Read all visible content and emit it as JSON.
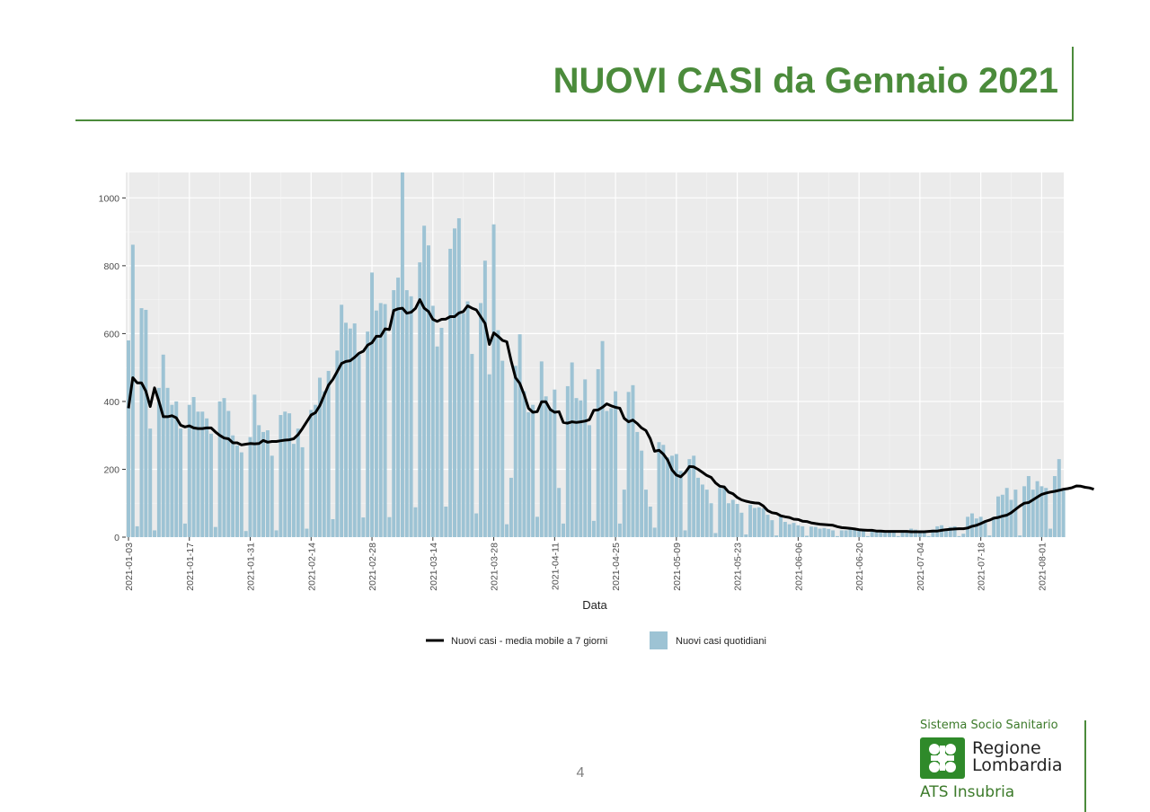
{
  "page": {
    "title": "NUOVI CASI da Gennaio 2021",
    "page_number": "4",
    "logo": {
      "top_line": "Sistema Socio Sanitario",
      "name_line1": "Regione",
      "name_line2": "Lombardia",
      "bottom_line": "ATS Insubria",
      "color": "#2f8a2a"
    }
  },
  "chart_data": {
    "type": "bar",
    "xlabel": "Data",
    "ylabel": "",
    "ylim": [
      0,
      1075
    ],
    "yticks": [
      0,
      200,
      400,
      600,
      800,
      1000
    ],
    "xticks": [
      "2021-01-03",
      "2021-01-17",
      "2021-01-31",
      "2021-02-14",
      "2021-02-28",
      "2021-03-14",
      "2021-03-28",
      "2021-04-11",
      "2021-04-25",
      "2021-05-09",
      "2021-05-23",
      "2021-06-06",
      "2021-06-20",
      "2021-07-04",
      "2021-07-18",
      "2021-08-01"
    ],
    "x_start": "2021-01-03",
    "grid": true,
    "legend_position": "bottom",
    "colors": {
      "bars": "#9dc3d4",
      "line": "#000000",
      "panel": "#ebebeb",
      "grid": "#ffffff"
    },
    "series": [
      {
        "name": "Nuovi casi - media mobile a 7 giorni",
        "kind": "line",
        "values": [
          380,
          470,
          455,
          455,
          430,
          385,
          440,
          400,
          355,
          355,
          358,
          352,
          330,
          325,
          328,
          322,
          320,
          320,
          322,
          322,
          310,
          300,
          292,
          290,
          278,
          278,
          272,
          274,
          276,
          275,
          276,
          285,
          280,
          282,
          282,
          284,
          286,
          287,
          290,
          302,
          320,
          340,
          360,
          367,
          388,
          418,
          448,
          465,
          488,
          512,
          518,
          520,
          530,
          542,
          548,
          566,
          573,
          592,
          592,
          614,
          612,
          668,
          673,
          675,
          660,
          663,
          674,
          700,
          675,
          665,
          642,
          636,
          642,
          643,
          650,
          650,
          661,
          665,
          682,
          675,
          670,
          650,
          630,
          568,
          602,
          592,
          580,
          576,
          520,
          470,
          453,
          420,
          380,
          368,
          370,
          399,
          399,
          376,
          368,
          370,
          338,
          336,
          340,
          338,
          340,
          342,
          346,
          374,
          375,
          383,
          393,
          387,
          383,
          380,
          350,
          340,
          345,
          335,
          322,
          314,
          290,
          253,
          256,
          245,
          227,
          198,
          183,
          178,
          190,
          208,
          207,
          200,
          191,
          182,
          176,
          160,
          150,
          148,
          133,
          128,
          117,
          110,
          106,
          103,
          101,
          100,
          92,
          78,
          72,
          70,
          63,
          60,
          58,
          53,
          52,
          47,
          46,
          42,
          40,
          38,
          37,
          36,
          35,
          31,
          28,
          27,
          26,
          24,
          22,
          21,
          20,
          20,
          18,
          18,
          17,
          17,
          17,
          17,
          17,
          17,
          16,
          16,
          16,
          16,
          17,
          18,
          18,
          20,
          22,
          23,
          24,
          25,
          25,
          27,
          32,
          35,
          40,
          46,
          50,
          56,
          58,
          62,
          65,
          72,
          82,
          92,
          100,
          102,
          110,
          118,
          126,
          130,
          133,
          135,
          138,
          141,
          143,
          146,
          151,
          150,
          147,
          145,
          141
        ]
      },
      {
        "name": "Nuovi casi quotidiani",
        "kind": "bar",
        "values": [
          580,
          862,
          32,
          675,
          670,
          320,
          20,
          440,
          538,
          440,
          390,
          400,
          320,
          40,
          390,
          413,
          370,
          370,
          350,
          305,
          30,
          400,
          410,
          372,
          300,
          270,
          250,
          18,
          295,
          420,
          330,
          310,
          315,
          240,
          20,
          360,
          370,
          365,
          275,
          320,
          265,
          25,
          375,
          390,
          470,
          430,
          490,
          53,
          550,
          685,
          632,
          615,
          630,
          538,
          58,
          606,
          780,
          668,
          690,
          687,
          59,
          728,
          765,
          1075,
          728,
          710,
          88,
          810,
          918,
          860,
          682,
          562,
          617,
          90,
          850,
          910,
          940,
          660,
          695,
          540,
          70,
          690,
          815,
          480,
          922,
          610,
          520,
          38,
          175,
          505,
          598,
          430,
          368,
          390,
          60,
          518,
          415,
          380,
          435,
          145,
          40,
          445,
          515,
          410,
          403,
          465,
          330,
          48,
          495,
          578,
          372,
          380,
          430,
          40,
          140,
          428,
          448,
          310,
          255,
          140,
          90,
          28,
          280,
          272,
          235,
          240,
          245,
          195,
          20,
          230,
          240,
          175,
          155,
          140,
          100,
          12,
          145,
          150,
          100,
          110,
          98,
          72,
          8,
          95,
          86,
          88,
          85,
          66,
          50,
          5,
          65,
          45,
          38,
          42,
          35,
          32,
          4,
          31,
          30,
          25,
          27,
          24,
          20,
          3,
          20,
          20,
          28,
          22,
          20,
          18,
          3,
          22,
          18,
          20,
          18,
          20,
          20,
          3,
          20,
          20,
          25,
          22,
          20,
          20,
          3,
          22,
          32,
          35,
          20,
          30,
          32,
          3,
          10,
          60,
          70,
          55,
          60,
          50,
          5,
          60,
          120,
          125,
          145,
          110,
          140,
          5,
          150,
          180,
          140,
          165,
          150,
          145,
          25,
          180,
          230,
          140
        ]
      }
    ]
  }
}
